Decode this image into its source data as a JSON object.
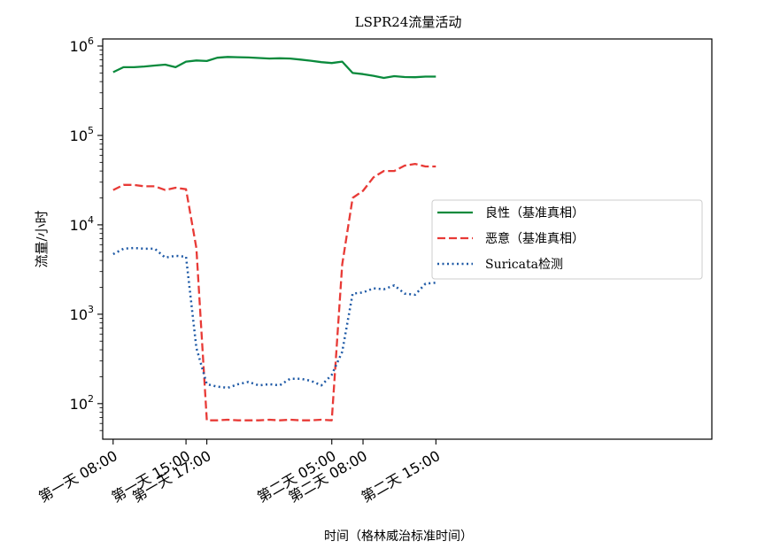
{
  "chart_data": {
    "type": "line",
    "title": "LSPR24流量活动",
    "xlabel": "时间（格林威治标准时间）",
    "ylabel": "流量/小时",
    "yscale": "log",
    "ylim": [
      40,
      1200000
    ],
    "xlim": [
      -1,
      57.5
    ],
    "grid": false,
    "legend_position": "center-right",
    "x_tick_positions": [
      0,
      7,
      9,
      21,
      24,
      31
    ],
    "x_tick_labels": [
      "第一天 08:00",
      "第一天 15:00",
      "第一天 17:00",
      "第二天 05:00",
      "第二天 08:00",
      "第二天 15:00"
    ],
    "y_ticks": [
      {
        "value": 100,
        "base": "10",
        "exp": "2"
      },
      {
        "value": 1000,
        "base": "10",
        "exp": "3"
      },
      {
        "value": 10000,
        "base": "10",
        "exp": "4"
      },
      {
        "value": 100000,
        "base": "10",
        "exp": "5"
      },
      {
        "value": 1000000,
        "base": "10",
        "exp": "6"
      }
    ],
    "series": [
      {
        "name": "良性（基准真相）",
        "color": "#0a8a3c",
        "dash": "solid",
        "x": [
          0,
          1,
          2,
          3,
          4,
          5,
          6,
          7,
          8,
          9,
          10,
          11,
          12,
          13,
          14,
          15,
          16,
          17,
          18,
          19,
          20,
          21,
          22,
          23,
          24,
          25,
          26,
          27,
          28,
          29,
          30,
          31
        ],
        "values": [
          510000,
          580000,
          580000,
          590000,
          605000,
          620000,
          580000,
          670000,
          690000,
          680000,
          740000,
          755000,
          750000,
          745000,
          735000,
          725000,
          730000,
          725000,
          705000,
          685000,
          660000,
          645000,
          670000,
          500000,
          485000,
          465000,
          440000,
          460000,
          450000,
          448000,
          455000,
          455000
        ]
      },
      {
        "name": "恶意（基准真相）",
        "color": "#e83a36",
        "dash": "dashed",
        "x": [
          0,
          1,
          2,
          3,
          4,
          5,
          6,
          7,
          8,
          9,
          10,
          11,
          12,
          13,
          14,
          15,
          16,
          17,
          18,
          19,
          20,
          21,
          22,
          23,
          24,
          25,
          26,
          27,
          28,
          29,
          30,
          31
        ],
        "values": [
          24500,
          28000,
          28000,
          27000,
          27000,
          24500,
          26000,
          25000,
          5500,
          65,
          65,
          66,
          65,
          65,
          65,
          66,
          65,
          66,
          65,
          65,
          66,
          65,
          3600,
          20000,
          24000,
          34000,
          40000,
          40000,
          46000,
          48000,
          45000,
          45000
        ]
      },
      {
        "name": "Suricata检测",
        "color": "#1f5aa6",
        "dash": "dotted",
        "x": [
          0,
          1,
          2,
          3,
          4,
          5,
          6,
          7,
          8,
          9,
          10,
          11,
          12,
          13,
          14,
          15,
          16,
          17,
          18,
          19,
          20,
          21,
          22,
          23,
          24,
          25,
          26,
          27,
          28,
          29,
          30,
          31
        ],
        "values": [
          4700,
          5400,
          5500,
          5400,
          5400,
          4300,
          4500,
          4400,
          420,
          165,
          155,
          150,
          165,
          175,
          160,
          165,
          160,
          190,
          190,
          180,
          160,
          210,
          380,
          1700,
          1750,
          1950,
          1900,
          2100,
          1700,
          1650,
          2200,
          2250
        ]
      }
    ]
  }
}
